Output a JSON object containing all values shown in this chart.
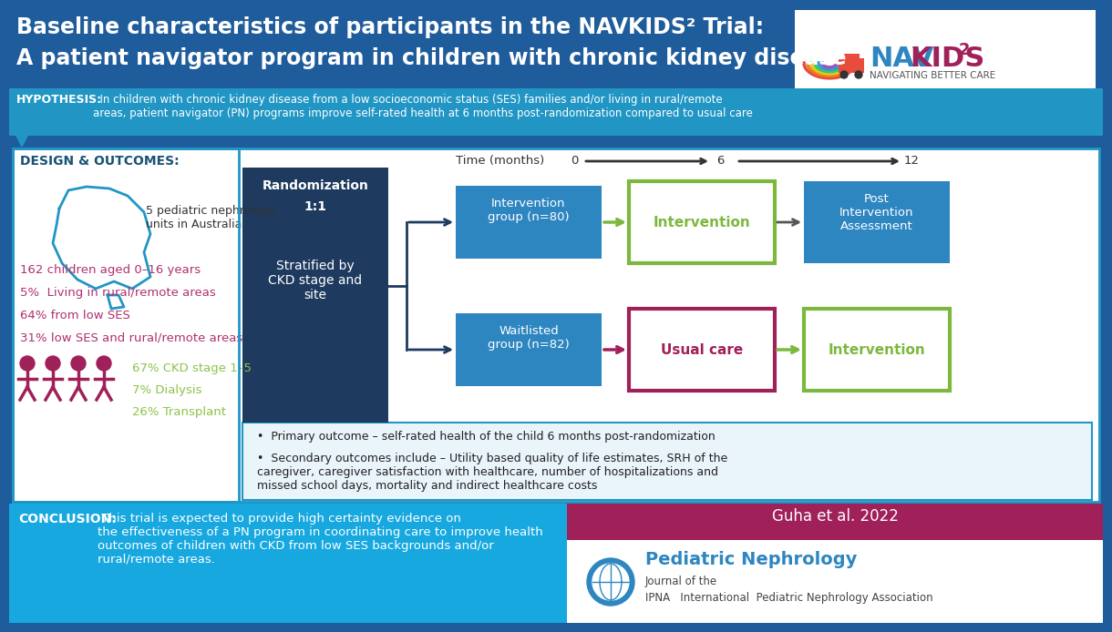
{
  "title_line1": "Baseline characteristics of participants in the NAVKIDS² Trial:",
  "title_line2": "A patient navigator program in children with chronic kidney disease",
  "title_color": "#FFFFFF",
  "main_bg": "#1e5c9b",
  "hypothesis_label": "HYPOTHESIS:",
  "hypothesis_text": "  In children with chronic kidney disease from a low socioeconomic status (SES) families and/or living in rural/remote\nareas, patient navigator (PN) programs improve self-rated health at 6 months post-randomization compared to usual care",
  "hypothesis_bg": "#2196c4",
  "design_label": "DESIGN & OUTCOMES:",
  "design_label_color": "#1a5276",
  "australia_text": "5 pediatric nephrology\nunits in Australia",
  "stats": [
    {
      "text": "162 children aged 0–16 years",
      "color": "#b03070"
    },
    {
      "text": "5%  Living in rural/remote areas",
      "color": "#b03070"
    },
    {
      "text": "64% from low SES",
      "color": "#b03070"
    },
    {
      "text": "31% low SES and rural/remote areas",
      "color": "#b03070"
    }
  ],
  "ckd_stats": [
    {
      "text": "67% CKD stage 1–5",
      "color": "#8bc34a"
    },
    {
      "text": "7% Dialysis",
      "color": "#8bc34a"
    },
    {
      "text": "26% Transplant",
      "color": "#8bc34a"
    }
  ],
  "rand_bg": "#1e3a5f",
  "rand_text1": "Randomization",
  "rand_text2": "1:1",
  "rand_text3": "Stratified by\nCKD stage and\nsite",
  "rand_color": "#FFFFFF",
  "intervention_group": "Intervention\ngroup (n=80)",
  "waitlisted_group": "Waitlisted\ngroup (n=82)",
  "group_bg": "#2e86c1",
  "group_text_color": "#FFFFFF",
  "intervention_box_text": "Intervention",
  "intervention_box_border": "#7cb83e",
  "intervention_box_text_color": "#7cb83e",
  "usual_care_text": "Usual care",
  "usual_care_border": "#a0205a",
  "usual_care_text_color": "#a0205a",
  "post_intervention_text": "Post\nIntervention\nAssessment",
  "post_bg": "#2e86c1",
  "post_text_color": "#FFFFFF",
  "intervention_bottom_text": "Intervention",
  "intervention_bottom_border": "#7cb83e",
  "intervention_bottom_text_color": "#7cb83e",
  "time_label": "Time (months)",
  "time_0": "0",
  "time_6": "6",
  "time_12": "12",
  "outcome1": "Primary outcome – self-rated health of the child 6 months post-randomization",
  "outcome2": "Secondary outcomes include – Utility based quality of life estimates, SRH of the\ncaregiver, caregiver satisfaction with healthcare, number of hospitalizations and\nmissed school days, mortality and indirect healthcare costs",
  "conclusion_bg": "#17a8e0",
  "conclusion_label": "CONCLUSION:",
  "conclusion_body": " This trial is expected to provide high certainty evidence on\nthe effectiveness of a PN program in coordinating care to improve health\noutcomes of children with CKD from low SES backgrounds and/or\nrural/remote areas.",
  "citation_bg": "#a0205a",
  "citation_text": "Guha et al. 2022",
  "journal_title": "Pediatric Nephrology",
  "journal_sub1": "Journal of the",
  "journal_sub2": "IPNA   International  Pediatric Nephrology Association",
  "journal_title_color": "#2e86c1",
  "navkids_nav": "NAV",
  "navkids_kids": "KIDS",
  "navkids_sup": "2",
  "navkids_sub": "NAVIGATING BETTER CARE",
  "navkids_nav_color": "#2e86c1",
  "navkids_kids_color": "#a0205a",
  "navkids_sub_color": "#555555",
  "content_bg": "#FFFFFF",
  "border_color": "#2196c4",
  "outcomes_bg": "#eaf4fb"
}
